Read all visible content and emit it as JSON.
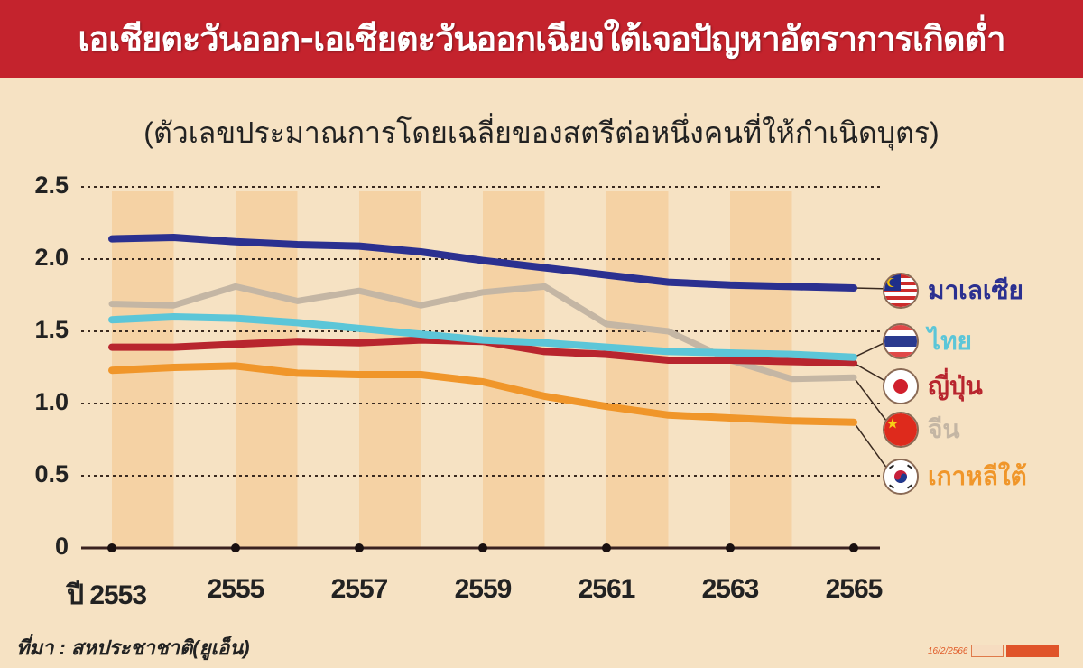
{
  "header": {
    "title": "เอเชียตะวันออก-เอเชียตะวันออกเฉียงใต้เจอปัญหาอัตราการเกิดต่ำ",
    "background": "#c4232d"
  },
  "subtitle": "(ตัวเลขประมาณการโดยเฉลี่ยของสตรีต่อหนึ่งคนที่ให้กำเนิดบุตร)",
  "yaxis": {
    "ticks": [
      "2.5",
      "2.0",
      "1.5",
      "1.0",
      "0.5",
      "0"
    ]
  },
  "xaxis": {
    "ticks": [
      "ปี 2553",
      "2555",
      "2557",
      "2559",
      "2561",
      "2563",
      "2565"
    ]
  },
  "legend": [
    {
      "label": "มาเลเซีย",
      "color": "#2b3090",
      "flag": "malaysia-flag"
    },
    {
      "label": "ไทย",
      "color": "#5cc6d8",
      "flag": "thailand-flag"
    },
    {
      "label": "ญี่ปุ่น",
      "color": "#b8252e",
      "flag": "japan-flag"
    },
    {
      "label": "จีน",
      "color": "#c4b6a4",
      "flag": "china-flag"
    },
    {
      "label": "เกาหลีใต้",
      "color": "#f0962a",
      "flag": "south-korea-flag"
    }
  ],
  "source": "ที่มา : สหประชาชาติ(ยูเอ็น)",
  "credit": {
    "date": "16/2/2566"
  },
  "chart_data": {
    "type": "line",
    "title": "เอเชียตะวันออก-เอเชียตะวันออกเฉียงใต้เจอปัญหาอัตราการเกิดต่ำ",
    "subtitle": "(ตัวเลขประมาณการโดยเฉลี่ยของสตรีต่อหนึ่งคนที่ให้กำเนิดบุตร)",
    "xlabel": "ปี",
    "ylabel": "",
    "x": [
      2553,
      2554,
      2555,
      2556,
      2557,
      2558,
      2559,
      2560,
      2561,
      2562,
      2563,
      2564,
      2565
    ],
    "xticks": [
      2553,
      2555,
      2557,
      2559,
      2561,
      2563,
      2565
    ],
    "ylim": [
      0,
      2.5
    ],
    "yticks": [
      0,
      0.5,
      1.0,
      1.5,
      2.0,
      2.5
    ],
    "grid": "horizontal dotted",
    "legend_position": "right (end of lines)",
    "series": [
      {
        "name": "มาเลเซีย",
        "color": "#2b3090",
        "values": [
          2.14,
          2.15,
          2.12,
          2.1,
          2.09,
          2.05,
          1.99,
          1.94,
          1.89,
          1.84,
          1.82,
          1.81,
          1.8
        ]
      },
      {
        "name": "ไทย",
        "color": "#5cc6d8",
        "values": [
          1.58,
          1.6,
          1.59,
          1.56,
          1.52,
          1.48,
          1.44,
          1.42,
          1.39,
          1.36,
          1.35,
          1.34,
          1.32
        ]
      },
      {
        "name": "ญี่ปุ่น",
        "color": "#b8252e",
        "values": [
          1.39,
          1.39,
          1.41,
          1.43,
          1.42,
          1.44,
          1.43,
          1.36,
          1.34,
          1.3,
          1.3,
          1.29,
          1.28
        ]
      },
      {
        "name": "จีน",
        "color": "#c4b6a4",
        "values": [
          1.69,
          1.68,
          1.81,
          1.71,
          1.78,
          1.68,
          1.77,
          1.81,
          1.55,
          1.5,
          1.3,
          1.17,
          1.18
        ]
      },
      {
        "name": "เกาหลีใต้",
        "color": "#f0962a",
        "values": [
          1.23,
          1.25,
          1.26,
          1.21,
          1.2,
          1.2,
          1.15,
          1.05,
          0.98,
          0.92,
          0.9,
          0.88,
          0.87
        ]
      }
    ]
  }
}
